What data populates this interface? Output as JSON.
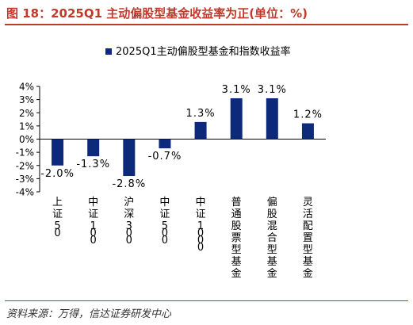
{
  "title": "图 18：2025Q1 主动偏股型基金收益率为正(单位：%)",
  "source": "资料来源：万得，信达证券研发中心",
  "colors": {
    "accent": "#c0392b",
    "bar": "#0d2a7a",
    "text": "#000000"
  },
  "chart_data": {
    "type": "bar",
    "categories": [
      "上证50",
      "中证100",
      "沪深300",
      "中证500",
      "中证1000",
      "普通股票型基金",
      "偏股混合型基金",
      "灵活配置型基金"
    ],
    "series": [
      {
        "name": "2025Q1主动偏股型基金和指数收益率",
        "values": [
          -2.0,
          -1.3,
          -2.8,
          -0.7,
          1.3,
          3.1,
          3.1,
          1.2
        ]
      }
    ],
    "data_labels": [
      "-2.0%",
      "-1.3%",
      "-2.8%",
      "-0.7%",
      "1.3%",
      "3.1%",
      "3.1%",
      "1.2%"
    ],
    "ylim": [
      -4,
      4
    ],
    "yticks": [
      -4,
      -3,
      -2,
      -1,
      0,
      1,
      2,
      3,
      4
    ],
    "ytick_labels": [
      "-4%",
      "-3%",
      "-2%",
      "-1%",
      "0%",
      "1%",
      "2%",
      "3%",
      "4%"
    ],
    "legend_position": "top",
    "grid": false
  }
}
